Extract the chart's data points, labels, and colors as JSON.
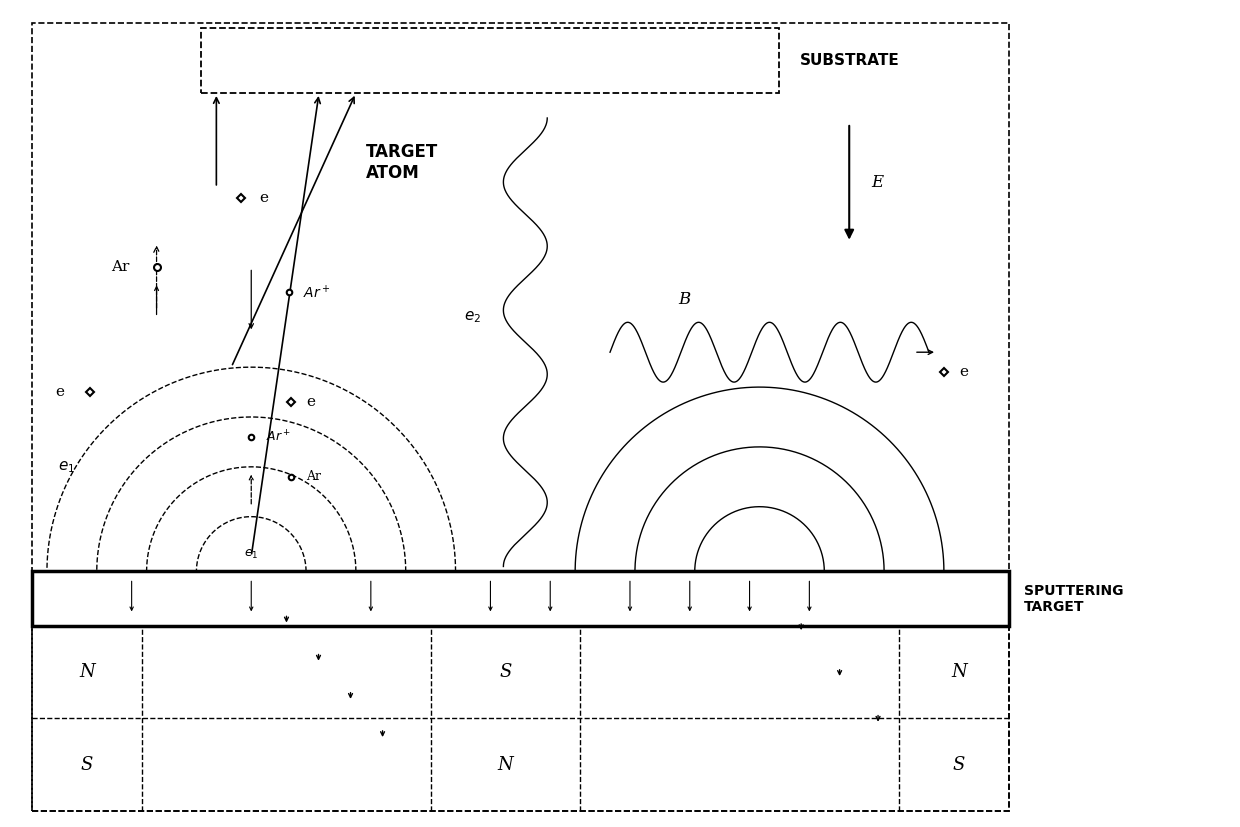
{
  "fig_width": 12.4,
  "fig_height": 8.27,
  "bg_color": "#ffffff",
  "lc": "#000000",
  "substrate_text": "SUBSTRATE",
  "sputtering_text": "SPUTTERING\nTARGET",
  "target_atom_text": "TARGET\nATOM",
  "E_text": "E",
  "B_text": "B",
  "e2_text": "e2",
  "e1_text": "e1",
  "Ar_text": "Ar",
  "Ar_plus": "Ar+",
  "e_text": "e",
  "magnet_labels": {
    "left_top": "N",
    "left_bot": "S",
    "center_top": "S",
    "center_bot": "N",
    "right_top": "N",
    "right_bot": "S"
  }
}
